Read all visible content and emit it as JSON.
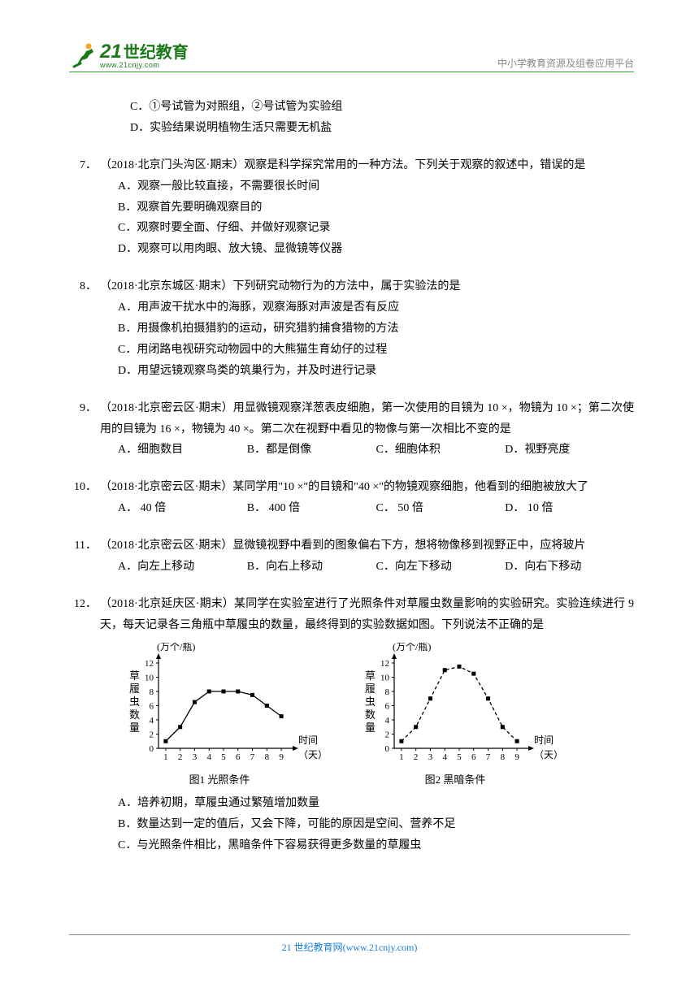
{
  "header": {
    "logo_num": "21",
    "logo_cn": "世纪教育",
    "logo_url": "www.21cnjy.com",
    "right_text": "中小学教育资源及组卷应用平台"
  },
  "q6_tail": {
    "c": "C．①号试管为对照组，②号试管为实验组",
    "d": "D．实验结果说明植物生活只需要无机盐"
  },
  "q7": {
    "num": "7．",
    "stem": "（2018·北京门头沟区·期末）观察是科学探究常用的一种方法。下列关于观察的叙述中，错误的是",
    "a": "A．观察一般比较直接，不需要很长时间",
    "b": "B．观察首先要明确观察目的",
    "c": "C．观察时要全面、仔细、并做好观察记录",
    "d": "D．观察可以用肉眼、放大镜、显微镜等仪器"
  },
  "q8": {
    "num": "8．",
    "stem": "（2018·北京东城区·期末）下列研究动物行为的方法中，属于实验法的是",
    "a": "A．用声波干扰水中的海豚，观察海豚对声波是否有反应",
    "b": "B．用摄像机拍摄猎豹的运动，研究猎豹捕食猎物的方法",
    "c": "C．用闭路电视研究动物园中的大熊猫生育幼仔的过程",
    "d": "D．用望远镜观察鸟类的筑巢行为，并及时进行记录"
  },
  "q9": {
    "num": "9．",
    "stem": "（2018·北京密云区·期末）用显微镜观察洋葱表皮细胞，第一次使用的目镜为 10 ×，物镜为 10 ×；第二次使用的目镜为 16 ×，物镜为 40 ×。第二次在视野中看见的物像与第一次相比不变的是",
    "a": "A．细胞数目",
    "b": "B．都是倒像",
    "c": "C．细胞体积",
    "d": "D．视野亮度"
  },
  "q10": {
    "num": "10．",
    "stem": "（2018·北京密云区·期末）某同学用\"10 ×\"的目镜和\"40 ×\"的物镜观察细胞，他看到的细胞被放大了",
    "a": "A． 40 倍",
    "b": "B． 400 倍",
    "c": "C． 50 倍",
    "d": "D． 10 倍"
  },
  "q11": {
    "num": "11．",
    "stem": "（2018·北京密云区·期末）显微镜视野中看到的图象偏右下方，想将物像移到视野正中，应将玻片",
    "a": "A．向左上移动",
    "b": "B．向右上移动",
    "c": "C．向左下移动",
    "d": "D．向右下移动"
  },
  "q12": {
    "num": "12．",
    "stem": "（2018·北京延庆区·期末）某同学在实验室进行了光照条件对草履虫数量影响的实验研究。实验连续进行 9 天，每天记录各三角瓶中草履虫的数量，最终得到的实验数据如图。下列说法不正确的是",
    "a": "A．培养初期，草履虫通过繁殖增加数量",
    "b": "B．数量达到一定的值后，又会下降，可能的原因是空间、营养不足",
    "c": "C．与光照条件相比，黑暗条件下容易获得更多数量的草履虫"
  },
  "chart1": {
    "caption": "图1  光照条件",
    "ylabel_top": "(万个/瓶)",
    "ylabel_side": "草履虫数量",
    "xlabel": "时间（天）",
    "ymax": 12,
    "ytick": 2,
    "xticks": [
      1,
      2,
      3,
      4,
      5,
      6,
      7,
      8,
      9
    ],
    "points_y": [
      1.0,
      3.0,
      6.5,
      8.0,
      8.0,
      8.0,
      7.5,
      6.0,
      4.5
    ],
    "line_color": "#000000",
    "marker_fill": "#000000",
    "dashed": false
  },
  "chart2": {
    "caption": "图2  黑暗条件",
    "ylabel_top": "(万个/瓶)",
    "ylabel_side": "草履虫数量",
    "xlabel": "时间（天）",
    "ymax": 12,
    "ytick": 2,
    "xticks": [
      1,
      2,
      3,
      4,
      5,
      6,
      7,
      8,
      9
    ],
    "points_y": [
      1.0,
      3.0,
      7.0,
      11.0,
      11.5,
      10.5,
      7.0,
      3.0,
      1.0
    ],
    "line_color": "#000000",
    "marker_fill": "#000000",
    "dashed": true
  },
  "footer": {
    "text": "21 世纪教育网(www.21cnjy.com)"
  }
}
